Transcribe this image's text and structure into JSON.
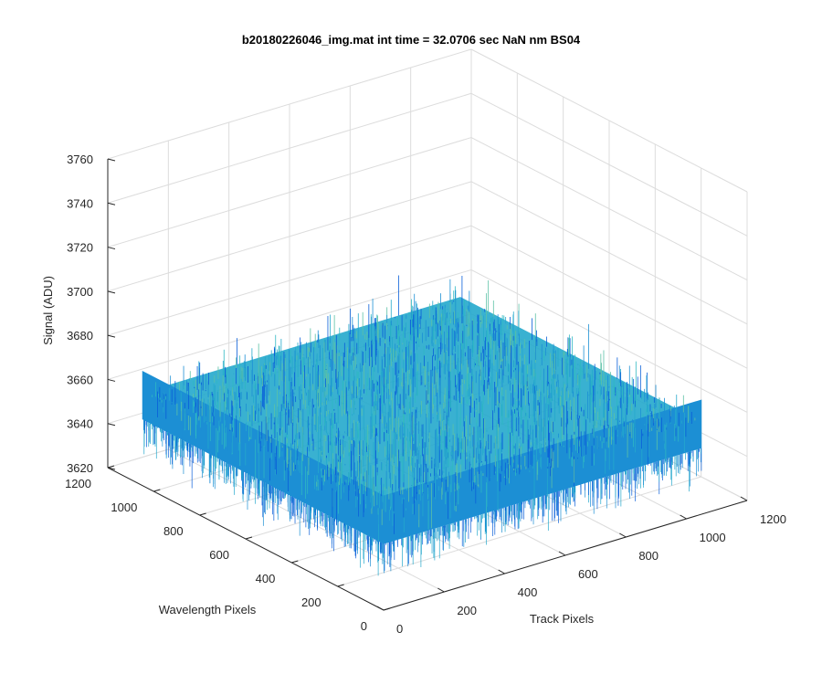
{
  "chart_data": {
    "type": "surface",
    "title": "b20180226046_img.mat int time = 32.0706 sec  NaN nm BS04",
    "xlabel": "Track Pixels",
    "ylabel": "Wavelength Pixels",
    "zlabel": "Signal (ADU)",
    "xlim": [
      0,
      1200
    ],
    "ylim": [
      0,
      1200
    ],
    "zlim": [
      3620,
      3760
    ],
    "x_ticks": [
      "0",
      "200",
      "400",
      "600",
      "800",
      "1000",
      "1200"
    ],
    "y_ticks": [
      "0",
      "200",
      "400",
      "600",
      "800",
      "1000",
      "1200"
    ],
    "z_ticks": [
      "3620",
      "3640",
      "3660",
      "3680",
      "3700",
      "3720",
      "3740",
      "3760"
    ],
    "data_extent": {
      "x": [
        0,
        1050
      ],
      "y": [
        0,
        1050
      ]
    },
    "signal_mean": 3662,
    "signal_range": [
      3630,
      3715
    ],
    "grid": true,
    "colormap": [
      "#0a5fd9",
      "#1c8fd4",
      "#24a8cc",
      "#2fb8c2",
      "#5cc1a6"
    ]
  }
}
